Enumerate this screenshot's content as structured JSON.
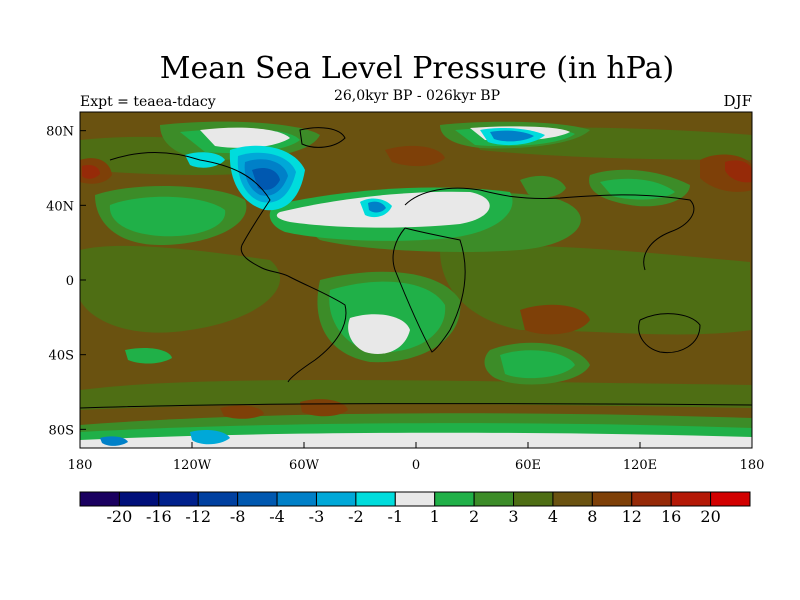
{
  "figure": {
    "title": "Mean Sea Level Pressure (in hPa)",
    "subtitle": "26,0kyr BP - 026kyr BP",
    "experiment_label": "Expt = teaea-tdacy",
    "season_label": "DJF"
  },
  "axes": {
    "lat_ticks": [
      {
        "value": 80,
        "label": "80N"
      },
      {
        "value": 40,
        "label": "40N"
      },
      {
        "value": 0,
        "label": "0"
      },
      {
        "value": -40,
        "label": "40S"
      },
      {
        "value": -80,
        "label": "80S"
      }
    ],
    "lon_ticks": [
      {
        "value": -180,
        "label": "180"
      },
      {
        "value": -120,
        "label": "120W"
      },
      {
        "value": -60,
        "label": "60W"
      },
      {
        "value": 0,
        "label": "0"
      },
      {
        "value": 60,
        "label": "60E"
      },
      {
        "value": 120,
        "label": "120E"
      },
      {
        "value": 180,
        "label": "180"
      }
    ],
    "lat_range": [
      -90,
      90
    ],
    "lon_range": [
      -180,
      180
    ]
  },
  "colorbar": {
    "colors": [
      "#1a0060",
      "#000f7a",
      "#00208c",
      "#0040a0",
      "#0058b0",
      "#0080c8",
      "#00a8d8",
      "#00dcdc",
      "#e8e8e8",
      "#20b048",
      "#3c8c28",
      "#4e6e14",
      "#6a5210",
      "#7e4008",
      "#962a08",
      "#b41806",
      "#d20000"
    ],
    "labels": [
      "-20",
      "-16",
      "-12",
      "-8",
      "-4",
      "-3",
      "-2",
      "-1",
      "1",
      "2",
      "3",
      "4",
      "8",
      "12",
      "16",
      "20"
    ]
  },
  "map_colors": {
    "base": "#6a5210",
    "level_4": "#4e6e14",
    "level_3": "#3c8c28",
    "level_2": "#20b048",
    "level_1": "#e8e8e8",
    "level_12": "#7e4008",
    "level_16": "#962a08",
    "neg_1": "#00dcdc",
    "neg_2": "#00a8d8",
    "neg_3": "#0080c8",
    "neg_4": "#0058b0",
    "neg_8": "#0040a0",
    "coast": "#000000"
  }
}
